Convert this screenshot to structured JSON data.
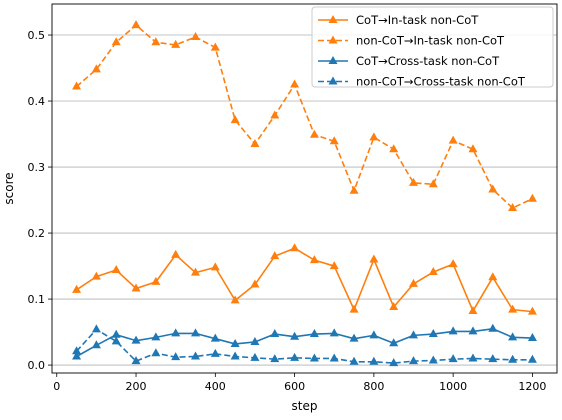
{
  "chart_data": {
    "type": "line",
    "xlabel": "step",
    "ylabel": "score",
    "xlim": [
      -12,
      1262
    ],
    "ylim": [
      -0.012,
      0.547
    ],
    "xticks": [
      0,
      200,
      400,
      600,
      800,
      1000,
      1200
    ],
    "yticks": [
      0.0,
      0.1,
      0.2,
      0.3,
      0.4,
      0.5
    ],
    "grid": "horizontal",
    "legend_position": "top-right",
    "x": [
      50,
      100,
      150,
      200,
      250,
      300,
      350,
      400,
      450,
      500,
      550,
      600,
      650,
      700,
      750,
      800,
      850,
      900,
      950,
      1000,
      1050,
      1100,
      1150,
      1200
    ],
    "series": [
      {
        "name": "CoT→In-task non-CoT",
        "color": "#ff7f0e",
        "linestyle": "solid",
        "marker": "triangle",
        "values": [
          0.114,
          0.134,
          0.144,
          0.116,
          0.126,
          0.167,
          0.14,
          0.148,
          0.098,
          0.122,
          0.165,
          0.177,
          0.159,
          0.15,
          0.084,
          0.16,
          0.088,
          0.123,
          0.141,
          0.153,
          0.082,
          0.133,
          0.084,
          0.081
        ]
      },
      {
        "name": "non-CoT→In-task non-CoT",
        "color": "#ff7f0e",
        "linestyle": "dashed",
        "marker": "triangle",
        "values": [
          0.422,
          0.448,
          0.489,
          0.515,
          0.489,
          0.485,
          0.497,
          0.481,
          0.371,
          0.335,
          0.378,
          0.425,
          0.349,
          0.339,
          0.264,
          0.345,
          0.327,
          0.276,
          0.274,
          0.34,
          0.327,
          0.266,
          0.238,
          0.252
        ]
      },
      {
        "name": "CoT→Cross-task non-CoT",
        "color": "#1f77b4",
        "linestyle": "solid",
        "marker": "triangle",
        "values": [
          0.013,
          0.03,
          0.046,
          0.037,
          0.042,
          0.048,
          0.048,
          0.04,
          0.032,
          0.035,
          0.047,
          0.043,
          0.047,
          0.048,
          0.04,
          0.045,
          0.033,
          0.045,
          0.047,
          0.051,
          0.051,
          0.055,
          0.042,
          0.041
        ]
      },
      {
        "name": "non-CoT→Cross-task non-CoT",
        "color": "#1f77b4",
        "linestyle": "dashed",
        "marker": "triangle",
        "values": [
          0.021,
          0.054,
          0.036,
          0.006,
          0.018,
          0.012,
          0.013,
          0.017,
          0.013,
          0.011,
          0.009,
          0.011,
          0.01,
          0.01,
          0.005,
          0.005,
          0.003,
          0.006,
          0.007,
          0.009,
          0.01,
          0.009,
          0.008,
          0.008
        ]
      }
    ]
  }
}
